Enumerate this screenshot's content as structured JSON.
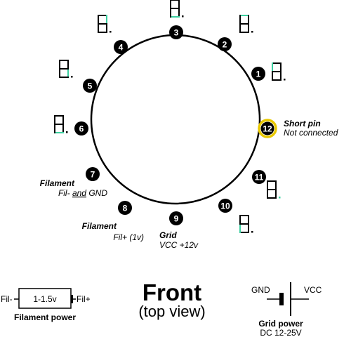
{
  "pins": [
    {
      "id": 1,
      "label": "1"
    },
    {
      "id": 2,
      "label": "2"
    },
    {
      "id": 3,
      "label": "3"
    },
    {
      "id": 4,
      "label": "4"
    },
    {
      "id": 5,
      "label": "5"
    },
    {
      "id": 6,
      "label": "6"
    },
    {
      "id": 7,
      "label": "7"
    },
    {
      "id": 8,
      "label": "8"
    },
    {
      "id": 9,
      "label": "9"
    },
    {
      "id": 10,
      "label": "10"
    },
    {
      "id": 11,
      "label": "11"
    },
    {
      "id": 12,
      "label": "12"
    }
  ],
  "notes": {
    "short_pin_title": "Short pin",
    "short_pin_sub": "Not connected",
    "filament1_title": "Filament",
    "filament1_sub_a": "Fil-",
    "filament1_sub_and": "and",
    "filament1_sub_b": "GND",
    "filament2_title": "Filament",
    "filament2_sub": "Fil+ (1v)",
    "grid_title": "Grid",
    "grid_sub": "VCC +12v"
  },
  "title": {
    "main": "Front",
    "sub": "(top view)"
  },
  "filament_power": {
    "left": "Fil-",
    "box": "1-1.5v",
    "right": "Fil+",
    "caption": "Filament power"
  },
  "grid_power": {
    "gnd": "GND",
    "vcc": "VCC",
    "caption": "Grid power",
    "sub": "DC 12-25V"
  },
  "colors": {
    "segment_highlight": "#3ccfa0",
    "short_pin_ring": "#e8c800",
    "ink": "#000000"
  }
}
